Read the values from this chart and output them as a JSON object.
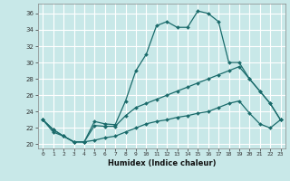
{
  "xlabel": "Humidex (Indice chaleur)",
  "bg_color": "#c8e8e8",
  "grid_color": "#ffffff",
  "line_color": "#1a6b6b",
  "xlim": [
    -0.5,
    23.5
  ],
  "ylim": [
    19.5,
    37.2
  ],
  "xticks": [
    0,
    1,
    2,
    3,
    4,
    5,
    6,
    7,
    8,
    9,
    10,
    11,
    12,
    13,
    14,
    15,
    16,
    17,
    18,
    19,
    20,
    21,
    22,
    23
  ],
  "yticks": [
    20,
    22,
    24,
    26,
    28,
    30,
    32,
    34,
    36
  ],
  "series": {
    "max": [
      23,
      21.8,
      21,
      20.3,
      20.3,
      22.8,
      22.5,
      22.4,
      25.3,
      29,
      31,
      34.5,
      35,
      34.3,
      34.3,
      36.3,
      36,
      35,
      30,
      30,
      28,
      26.5,
      25,
      23
    ],
    "avg": [
      23,
      21.8,
      21,
      20.3,
      20.3,
      22.3,
      22.2,
      22.2,
      23.5,
      24.5,
      25,
      25.5,
      26,
      26.5,
      27,
      27.5,
      28,
      28.5,
      29,
      29.5,
      28,
      26.5,
      25,
      23
    ],
    "min": [
      23,
      21.5,
      21,
      20.3,
      20.3,
      20.5,
      20.8,
      21,
      21.5,
      22,
      22.5,
      22.8,
      23,
      23.3,
      23.5,
      23.8,
      24,
      24.5,
      25,
      25.3,
      23.8,
      22.5,
      22,
      23
    ]
  }
}
